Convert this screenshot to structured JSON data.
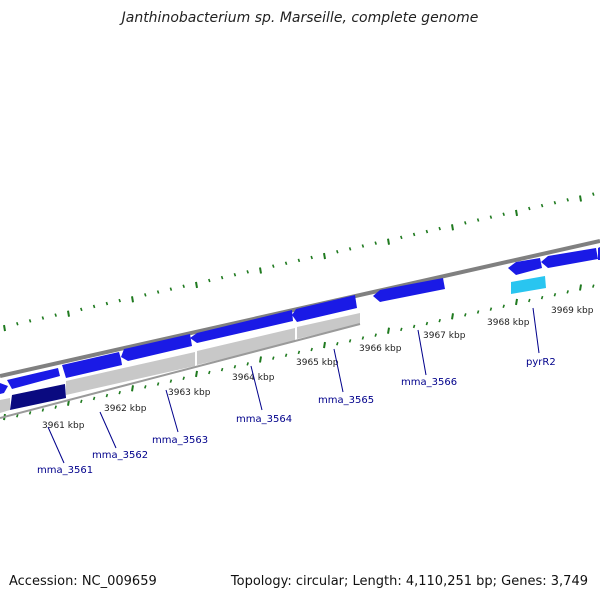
{
  "title": "Janthinobacterium sp. Marseille, complete genome",
  "footer": {
    "accession": "Accession: NC_009659",
    "topology": "Topology: circular; Length: 4,110,251 bp; Genes: 3,749"
  },
  "colors": {
    "forward_gene": "#1a1ae6",
    "reverse_gene_dark": "#0a0a80",
    "highlight_gene": "#29c5f0",
    "backbone": "#808080",
    "pseudo": "#c8c8c8",
    "tick": "#1f7a1f",
    "label": "#00008b"
  },
  "kbp_labels": [
    "3961 kbp",
    "3962 kbp",
    "3963 kbp",
    "3964 kbp",
    "3965 kbp",
    "3966 kbp",
    "3967 kbp",
    "3968 kbp",
    "3969 kbp"
  ],
  "genes": [
    {
      "name": "mma_3561"
    },
    {
      "name": "mma_3562"
    },
    {
      "name": "mma_3563"
    },
    {
      "name": "mma_3564"
    },
    {
      "name": "mma_3565"
    },
    {
      "name": "mma_3566"
    },
    {
      "name": "pyrR2"
    }
  ]
}
